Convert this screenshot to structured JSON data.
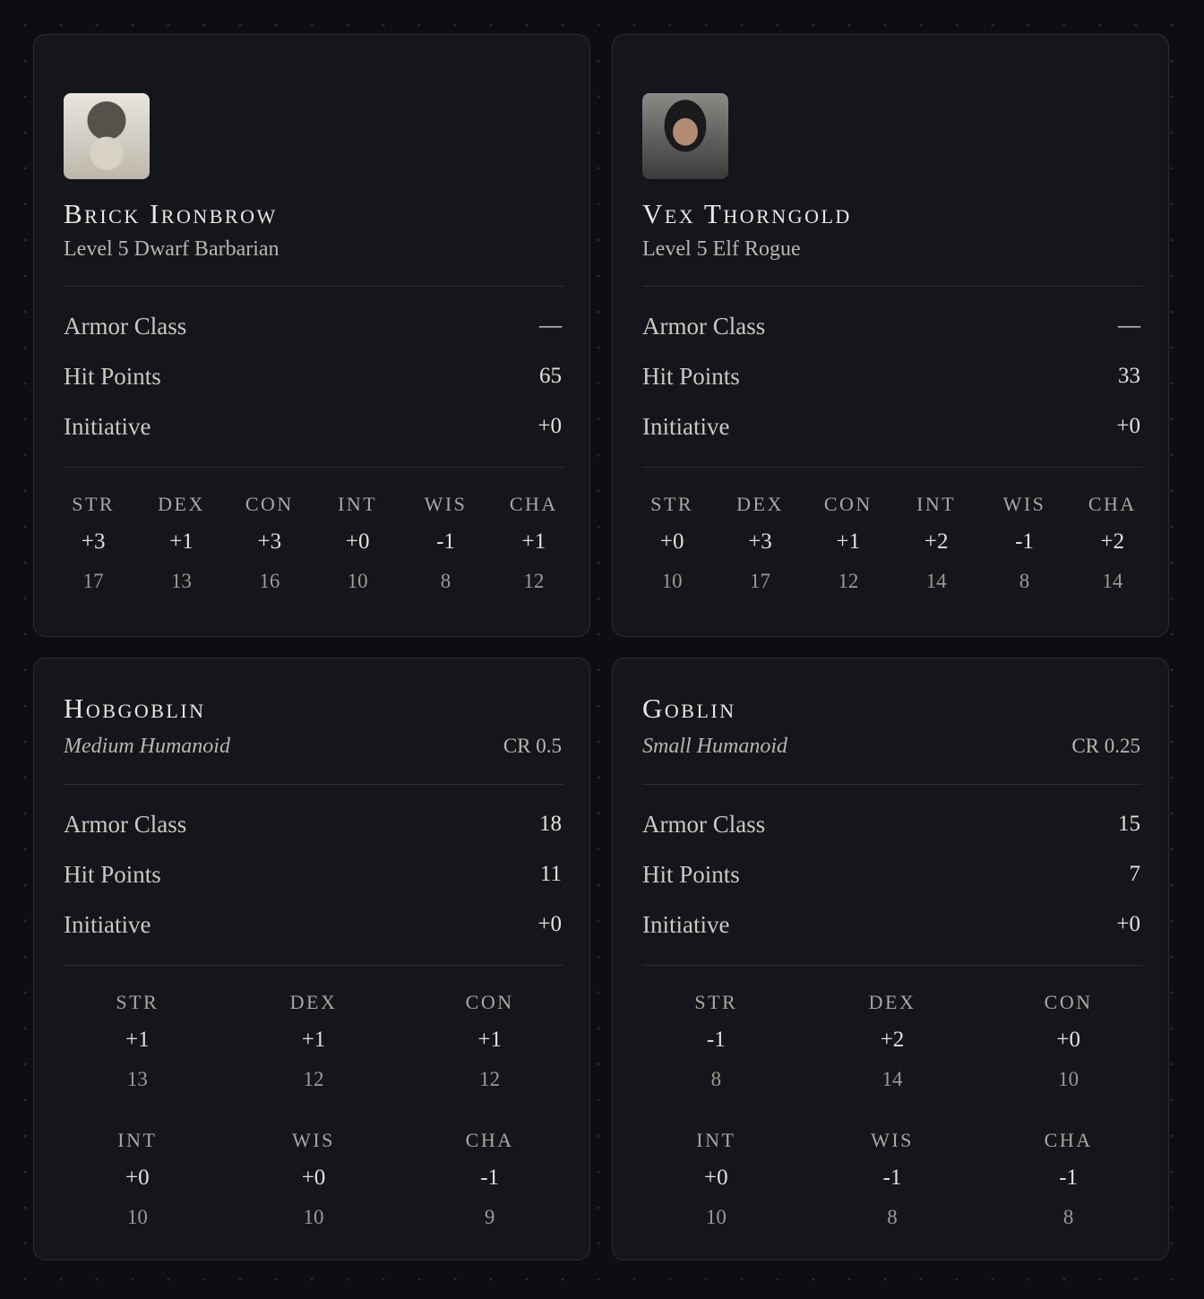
{
  "cards": [
    {
      "name": "Brick Ironbrow",
      "subtitle": "Level 5 Dwarf Barbarian",
      "stats": [
        {
          "label": "Armor Class",
          "value": "—"
        },
        {
          "label": "Hit Points",
          "value": "65"
        },
        {
          "label": "Initiative",
          "value": "+0"
        }
      ],
      "abilities": [
        [
          {
            "name": "STR",
            "mod": "+3",
            "score": "17"
          },
          {
            "name": "DEX",
            "mod": "+1",
            "score": "13"
          },
          {
            "name": "CON",
            "mod": "+3",
            "score": "16"
          },
          {
            "name": "INT",
            "mod": "+0",
            "score": "10"
          },
          {
            "name": "WIS",
            "mod": "-1",
            "score": "8"
          },
          {
            "name": "CHA",
            "mod": "+1",
            "score": "12"
          }
        ]
      ]
    },
    {
      "name": "Vex Thorngold",
      "subtitle": "Level 5 Elf Rogue",
      "stats": [
        {
          "label": "Armor Class",
          "value": "—"
        },
        {
          "label": "Hit Points",
          "value": "33"
        },
        {
          "label": "Initiative",
          "value": "+0"
        }
      ],
      "abilities": [
        [
          {
            "name": "STR",
            "mod": "+0",
            "score": "10"
          },
          {
            "name": "DEX",
            "mod": "+3",
            "score": "17"
          },
          {
            "name": "CON",
            "mod": "+1",
            "score": "12"
          },
          {
            "name": "INT",
            "mod": "+2",
            "score": "14"
          },
          {
            "name": "WIS",
            "mod": "-1",
            "score": "8"
          },
          {
            "name": "CHA",
            "mod": "+2",
            "score": "14"
          }
        ]
      ]
    },
    {
      "name": "Hobgoblin",
      "subtitle": "Medium Humanoid",
      "cr": "CR 0.5",
      "stats": [
        {
          "label": "Armor Class",
          "value": "18"
        },
        {
          "label": "Hit Points",
          "value": "11"
        },
        {
          "label": "Initiative",
          "value": "+0"
        }
      ],
      "abilities": [
        [
          {
            "name": "STR",
            "mod": "+1",
            "score": "13"
          },
          {
            "name": "DEX",
            "mod": "+1",
            "score": "12"
          },
          {
            "name": "CON",
            "mod": "+1",
            "score": "12"
          }
        ],
        [
          {
            "name": "INT",
            "mod": "+0",
            "score": "10"
          },
          {
            "name": "WIS",
            "mod": "+0",
            "score": "10"
          },
          {
            "name": "CHA",
            "mod": "-1",
            "score": "9"
          }
        ]
      ]
    },
    {
      "name": "Goblin",
      "subtitle": "Small Humanoid",
      "cr": "CR 0.25",
      "stats": [
        {
          "label": "Armor Class",
          "value": "15"
        },
        {
          "label": "Hit Points",
          "value": "7"
        },
        {
          "label": "Initiative",
          "value": "+0"
        }
      ],
      "abilities": [
        [
          {
            "name": "STR",
            "mod": "-1",
            "score": "8"
          },
          {
            "name": "DEX",
            "mod": "+2",
            "score": "14"
          },
          {
            "name": "CON",
            "mod": "+0",
            "score": "10"
          }
        ],
        [
          {
            "name": "INT",
            "mod": "+0",
            "score": "10"
          },
          {
            "name": "WIS",
            "mod": "-1",
            "score": "8"
          },
          {
            "name": "CHA",
            "mod": "-1",
            "score": "8"
          }
        ]
      ]
    }
  ]
}
